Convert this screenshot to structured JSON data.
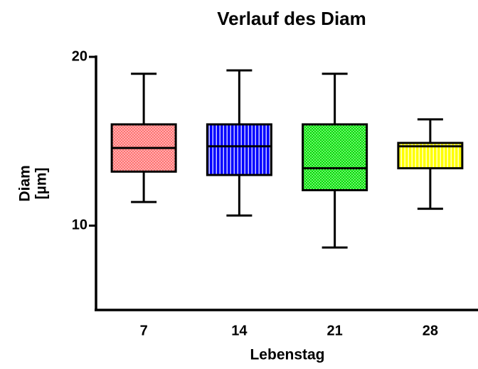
{
  "chart_data": {
    "type": "box",
    "title": "Verlauf des Diam",
    "y_label": [
      "Diam",
      "[µm]"
    ],
    "x_label": "Lebenstag",
    "categories": [
      "7",
      "14",
      "21",
      "28"
    ],
    "boxes": [
      {
        "low": 11.4,
        "q1": 13.2,
        "median": 14.6,
        "q3": 16.0,
        "high": 19.0,
        "color": "#ff7070",
        "pattern": "checker"
      },
      {
        "low": 10.6,
        "q1": 13.0,
        "median": 14.7,
        "q3": 16.0,
        "high": 19.2,
        "color": "#0000ff",
        "pattern": "stripes"
      },
      {
        "low": 8.7,
        "q1": 12.1,
        "median": 13.4,
        "q3": 16.0,
        "high": 19.0,
        "color": "#00e000",
        "pattern": "checker"
      },
      {
        "low": 11.0,
        "q1": 13.4,
        "median": 14.7,
        "q3": 14.9,
        "high": 16.3,
        "color": "#ffff00",
        "pattern": "stripes"
      }
    ],
    "ylim": [
      5,
      20
    ],
    "yticks": [
      10,
      20
    ]
  }
}
